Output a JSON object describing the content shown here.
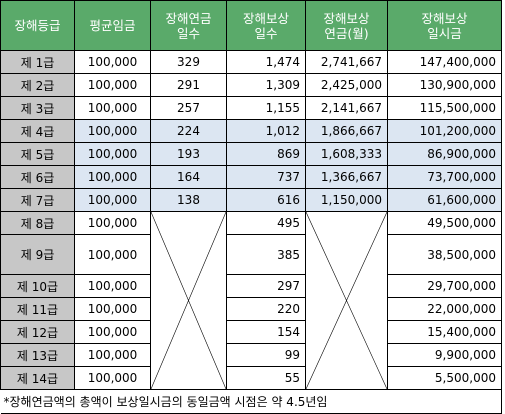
{
  "headers": {
    "grade": "장해등급",
    "avg_wage": "평균임금",
    "pension_days": [
      "장해연금",
      "일수"
    ],
    "comp_days": [
      "장해보상",
      "일수"
    ],
    "monthly_pension": [
      "장해보상",
      "연금(월)"
    ],
    "lump_sum": [
      "장해보상",
      "일시금"
    ]
  },
  "rows": [
    {
      "grade": "제 1급",
      "avg_wage": "100,000",
      "pension_days": "329",
      "comp_days": "1,474",
      "monthly_pension": "2,741,667",
      "lump_sum": "147,400,000"
    },
    {
      "grade": "제 2급",
      "avg_wage": "100,000",
      "pension_days": "291",
      "comp_days": "1,309",
      "monthly_pension": "2,425,000",
      "lump_sum": "130,900,000"
    },
    {
      "grade": "제 3급",
      "avg_wage": "100,000",
      "pension_days": "257",
      "comp_days": "1,155",
      "monthly_pension": "2,141,667",
      "lump_sum": "115,500,000"
    },
    {
      "grade": "제 4급",
      "avg_wage": "100,000",
      "pension_days": "224",
      "comp_days": "1,012",
      "monthly_pension": "1,866,667",
      "lump_sum": "101,200,000"
    },
    {
      "grade": "제 5급",
      "avg_wage": "100,000",
      "pension_days": "193",
      "comp_days": "869",
      "monthly_pension": "1,608,333",
      "lump_sum": "86,900,000"
    },
    {
      "grade": "제 6급",
      "avg_wage": "100,000",
      "pension_days": "164",
      "comp_days": "737",
      "monthly_pension": "1,366,667",
      "lump_sum": "73,700,000"
    },
    {
      "grade": "제 7급",
      "avg_wage": "100,000",
      "pension_days": "138",
      "comp_days": "616",
      "monthly_pension": "1,150,000",
      "lump_sum": "61,600,000"
    },
    {
      "grade": "제 8급",
      "avg_wage": "100,000",
      "comp_days": "495",
      "lump_sum": "49,500,000"
    },
    {
      "grade": "제 9급",
      "avg_wage": "100,000",
      "comp_days": "385",
      "lump_sum": "38,500,000"
    },
    {
      "grade": "제 10급",
      "avg_wage": "100,000",
      "comp_days": "297",
      "lump_sum": "29,700,000"
    },
    {
      "grade": "제 11급",
      "avg_wage": "100,000",
      "comp_days": "220",
      "lump_sum": "22,000,000"
    },
    {
      "grade": "제 12급",
      "avg_wage": "100,000",
      "comp_days": "154",
      "lump_sum": "15,400,000"
    },
    {
      "grade": "제 13급",
      "avg_wage": "100,000",
      "comp_days": "99",
      "lump_sum": "9,900,000"
    },
    {
      "grade": "제 14급",
      "avg_wage": "100,000",
      "comp_days": "55",
      "lump_sum": "5,500,000"
    }
  ],
  "footnote": "*장해연금액의 총액이 보상일시금의 동일금액 시점은 약 4.5년임",
  "colors": {
    "header_bg": "#5aaa6a",
    "grade_bg": "#c7c7c7",
    "highlight_bg": "#dce6f2"
  }
}
